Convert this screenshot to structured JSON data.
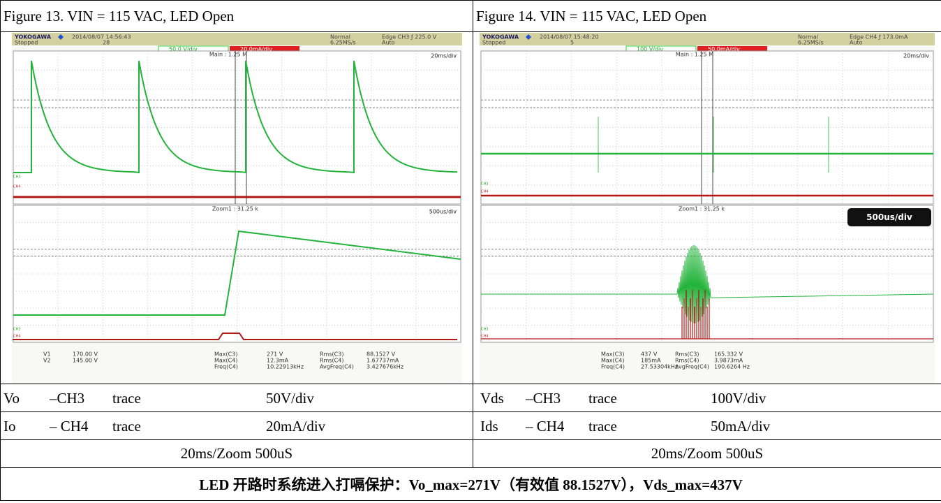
{
  "figures": [
    {
      "caption": "Figure 13. VIN = 115 VAC, LED Open",
      "scope": {
        "brand": "YOKOGAWA",
        "timestamp": "2014/08/07 14:56:43",
        "status": "Stopped",
        "count": "28",
        "mode": "Normal",
        "sample_rate": "6.25MS/s",
        "trigger": "Edge CH3 ƒ 225.0 V",
        "trigger_mode": "Auto",
        "ch3_scale": "50.0 V/div",
        "ch4_scale": "20.0mA/div",
        "main": "Main : 1.25 M",
        "main_timebase": "20ms/div",
        "zoom": "Zoom1 : 31.25 k",
        "zoom_timebase": "500us/div",
        "channels": [
          "CH3",
          "CH4"
        ],
        "measurements": [
          [
            "V1",
            "V2"
          ],
          [
            "170.00 V",
            "145.00 V"
          ],
          [
            "Max(C3)",
            "Max(C4)",
            "Freq(C4)"
          ],
          [
            "271 V",
            "12.3mA",
            "10.22913kHz"
          ],
          [
            "Rms(C3)",
            "Rms(C4)",
            "AvgFreq(C4)"
          ],
          [
            "88.1527 V",
            "1.67737mA",
            "3.427676kHz"
          ]
        ]
      },
      "rows": [
        [
          "Vo",
          "–CH3",
          "trace",
          "50V/div"
        ],
        [
          "Io",
          "– CH4",
          "trace",
          "20mA/div"
        ],
        [
          "20ms/Zoom 500uS"
        ]
      ]
    },
    {
      "caption": "Figure 14. VIN = 115 VAC, LED Open",
      "scope": {
        "brand": "YOKOGAWA",
        "timestamp": "2014/08/07 15:48:20",
        "status": "Stopped",
        "count": "5",
        "mode": "Normal",
        "sample_rate": "6.25MS/s",
        "trigger": "Edge CH4 ƒ 173.0mA",
        "trigger_mode": "Auto",
        "ch3_scale": "100 V/div",
        "ch4_scale": "50.0mA/div",
        "main": "Main : 1.25 M",
        "main_timebase": "20ms/div",
        "zoom": "Zoom1 : 31.25 k",
        "zoom_timebase": "500us/div",
        "channels": [
          "CH3",
          "CH4"
        ],
        "measurements": [
          [
            "Max(C3)",
            "Max(C4)",
            "Freq(C4)"
          ],
          [
            "437 V",
            "185mA",
            "27.53304kHz"
          ],
          [
            "Rms(C3)",
            "Rms(C4)",
            "AvgFreq(C4)"
          ],
          [
            "165.332 V",
            "3.9873mA",
            "190.6264 Hz"
          ]
        ]
      },
      "rows": [
        [
          "Vds",
          "–CH3",
          "trace",
          "100V/div"
        ],
        [
          "Ids",
          "– CH4",
          "trace",
          "50mA/div"
        ],
        [
          "20ms/Zoom 500uS"
        ]
      ]
    }
  ],
  "summary": "LED 开路时系统进入打嗝保护：Vo_max=271V（有效值 88.1527V），Vds_max=437V"
}
